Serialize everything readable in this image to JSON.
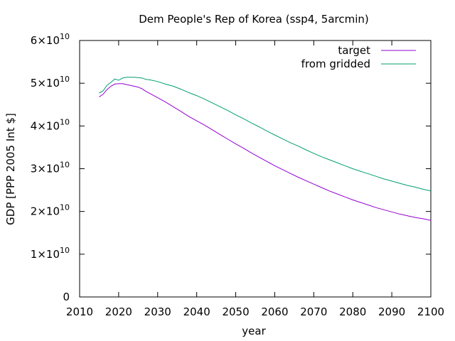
{
  "chart_data": {
    "type": "line",
    "title": "Dem People's Rep of Korea (ssp4, 5arcmin)",
    "xlabel": "year",
    "ylabel": "GDP [PPP 2005 Int $]",
    "xlim": [
      2010,
      2100
    ],
    "ylim": [
      0,
      60000000000
    ],
    "x_ticks": [
      "2010",
      "2020",
      "2030",
      "2040",
      "2050",
      "2060",
      "2070",
      "2080",
      "2090",
      "2100"
    ],
    "y_ticks": [
      {
        "mantissa": "0",
        "exp": ""
      },
      {
        "mantissa": "1×10",
        "exp": "10"
      },
      {
        "mantissa": "2×10",
        "exp": "10"
      },
      {
        "mantissa": "3×10",
        "exp": "10"
      },
      {
        "mantissa": "4×10",
        "exp": "10"
      },
      {
        "mantissa": "5×10",
        "exp": "10"
      },
      {
        "mantissa": "6×10",
        "exp": "10"
      }
    ],
    "grid": false,
    "legend_position": "top-right",
    "series": [
      {
        "name": "target",
        "color": "#9400d3",
        "x": [
          2015,
          2016,
          2017,
          2018,
          2019,
          2020,
          2021,
          2022,
          2023,
          2024,
          2025,
          2026,
          2027,
          2028,
          2030,
          2032,
          2034,
          2036,
          2038,
          2040,
          2042,
          2044,
          2046,
          2048,
          2050,
          2052,
          2054,
          2056,
          2058,
          2060,
          2062,
          2064,
          2066,
          2068,
          2070,
          2072,
          2074,
          2076,
          2078,
          2080,
          2082,
          2084,
          2086,
          2088,
          2090,
          2092,
          2094,
          2096,
          2098,
          2100
        ],
        "y": [
          46800000000.0,
          47400000000.0,
          48500000000.0,
          49300000000.0,
          49800000000.0,
          49900000000.0,
          49900000000.0,
          49700000000.0,
          49500000000.0,
          49300000000.0,
          49100000000.0,
          48700000000.0,
          48100000000.0,
          47600000000.0,
          46600000000.0,
          45600000000.0,
          44500000000.0,
          43400000000.0,
          42200000000.0,
          41200000000.0,
          40200000000.0,
          39100000000.0,
          38000000000.0,
          36900000000.0,
          35800000000.0,
          34800000000.0,
          33700000000.0,
          32700000000.0,
          31700000000.0,
          30700000000.0,
          29800000000.0,
          28900000000.0,
          28000000000.0,
          27200000000.0,
          26400000000.0,
          25600000000.0,
          24800000000.0,
          24100000000.0,
          23400000000.0,
          22700000000.0,
          22100000000.0,
          21500000000.0,
          20900000000.0,
          20400000000.0,
          19900000000.0,
          19400000000.0,
          19000000000.0,
          18600000000.0,
          18300000000.0,
          17900000000.0
        ]
      },
      {
        "name": "from gridded",
        "color": "#009e73",
        "x": [
          2015,
          2016,
          2017,
          2018,
          2019,
          2020,
          2021,
          2022,
          2023,
          2024,
          2025,
          2026,
          2027,
          2028,
          2030,
          2032,
          2034,
          2036,
          2038,
          2040,
          2042,
          2044,
          2046,
          2048,
          2050,
          2052,
          2054,
          2056,
          2058,
          2060,
          2062,
          2064,
          2066,
          2068,
          2070,
          2072,
          2074,
          2076,
          2078,
          2080,
          2082,
          2084,
          2086,
          2088,
          2090,
          2092,
          2094,
          2096,
          2098,
          2100
        ],
        "y": [
          47700000000.0,
          48200000000.0,
          49500000000.0,
          50200000000.0,
          51000000000.0,
          50700000000.0,
          51200000000.0,
          51400000000.0,
          51400000000.0,
          51400000000.0,
          51300000000.0,
          51200000000.0,
          50900000000.0,
          50800000000.0,
          50400000000.0,
          49800000000.0,
          49300000000.0,
          48600000000.0,
          47800000000.0,
          47100000000.0,
          46300000000.0,
          45400000000.0,
          44500000000.0,
          43600000000.0,
          42600000000.0,
          41700000000.0,
          40700000000.0,
          39800000000.0,
          38800000000.0,
          37900000000.0,
          37000000000.0,
          36100000000.0,
          35300000000.0,
          34400000000.0,
          33600000000.0,
          32800000000.0,
          32100000000.0,
          31400000000.0,
          30700000000.0,
          30000000000.0,
          29400000000.0,
          28800000000.0,
          28200000000.0,
          27600000000.0,
          27100000000.0,
          26600000000.0,
          26100000000.0,
          25700000000.0,
          25200000000.0,
          24800000000.0
        ]
      }
    ]
  }
}
